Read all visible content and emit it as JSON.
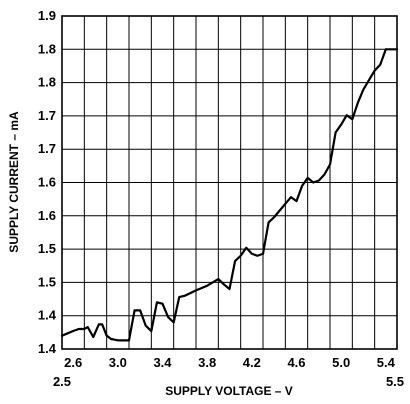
{
  "chart_data": {
    "type": "line",
    "title": "",
    "xlabel": "SUPPLY VOLTAGE – V",
    "ylabel": "SUPPLY CURRENT – mA",
    "xlim": [
      2.5,
      5.5
    ],
    "ylim": [
      1.4,
      1.9
    ],
    "grid": true,
    "x_ticks_printed": [
      {
        "value": 2.6,
        "label": "2.6"
      },
      {
        "value": 3.0,
        "label": "3.0"
      },
      {
        "value": 3.4,
        "label": "3.4"
      },
      {
        "value": 3.8,
        "label": "3.8"
      },
      {
        "value": 4.2,
        "label": "4.2"
      },
      {
        "value": 4.6,
        "label": "4.6"
      },
      {
        "value": 5.0,
        "label": "5.0"
      },
      {
        "value": 5.4,
        "label": "5.4"
      }
    ],
    "x_end_labels": [
      {
        "value": 2.5,
        "label": "2.5"
      },
      {
        "value": 5.5,
        "label": "5.5"
      }
    ],
    "y_ticks": [
      {
        "value": 1.4,
        "label": "1.4"
      },
      {
        "value": 1.45,
        "label": "1.4"
      },
      {
        "value": 1.5,
        "label": "1.5"
      },
      {
        "value": 1.55,
        "label": "1.5"
      },
      {
        "value": 1.6,
        "label": "1.6"
      },
      {
        "value": 1.65,
        "label": "1.6"
      },
      {
        "value": 1.7,
        "label": "1.7"
      },
      {
        "value": 1.75,
        "label": "1.7"
      },
      {
        "value": 1.8,
        "label": "1.8"
      },
      {
        "value": 1.85,
        "label": "1.8"
      },
      {
        "value": 1.9,
        "label": "1.9"
      }
    ],
    "x_grid": [
      2.5,
      2.7,
      2.9,
      3.1,
      3.3,
      3.5,
      3.7,
      3.9,
      4.1,
      4.3,
      4.5,
      4.7,
      4.9,
      5.1,
      5.3,
      5.5
    ],
    "series": [
      {
        "x": [
          2.5,
          2.6,
          2.65,
          2.7,
          2.73,
          2.78,
          2.83,
          2.86,
          2.9,
          2.94,
          3.0,
          3.05,
          3.1,
          3.15,
          3.2,
          3.25,
          3.3,
          3.35,
          3.4,
          3.45,
          3.5,
          3.55,
          3.6,
          3.7,
          3.8,
          3.9,
          3.95,
          4.0,
          4.05,
          4.1,
          4.15,
          4.2,
          4.25,
          4.3,
          4.35,
          4.4,
          4.5,
          4.55,
          4.6,
          4.65,
          4.7,
          4.75,
          4.8,
          4.85,
          4.9,
          4.95,
          5.0,
          5.05,
          5.1,
          5.15,
          5.2,
          5.25,
          5.3,
          5.35,
          5.4,
          5.45,
          5.5
        ],
        "y": [
          1.42,
          1.427,
          1.43,
          1.43,
          1.433,
          1.418,
          1.437,
          1.437,
          1.42,
          1.415,
          1.413,
          1.413,
          1.413,
          1.458,
          1.458,
          1.435,
          1.427,
          1.47,
          1.468,
          1.448,
          1.44,
          1.478,
          1.48,
          1.488,
          1.495,
          1.505,
          1.497,
          1.49,
          1.532,
          1.54,
          1.552,
          1.543,
          1.54,
          1.543,
          1.59,
          1.598,
          1.618,
          1.628,
          1.622,
          1.645,
          1.657,
          1.65,
          1.653,
          1.662,
          1.677,
          1.725,
          1.737,
          1.751,
          1.745,
          1.77,
          1.79,
          1.804,
          1.818,
          1.827,
          1.85,
          1.85,
          1.85
        ]
      }
    ]
  }
}
